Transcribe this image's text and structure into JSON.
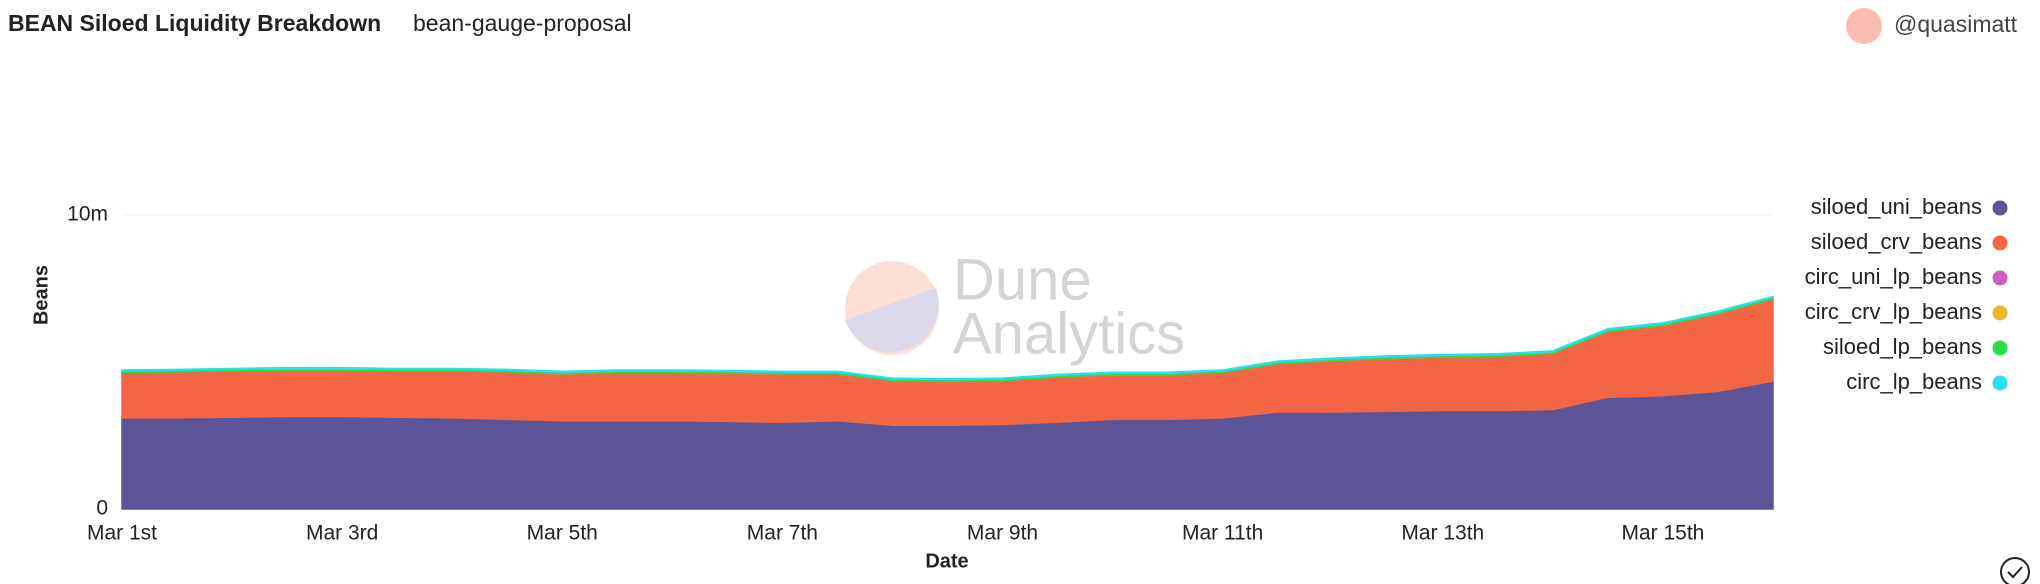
{
  "header": {
    "title": "BEAN Siloed Liquidity Breakdown",
    "subtitle": "bean-gauge-proposal",
    "user": "@quasimatt"
  },
  "chart_data": {
    "type": "area",
    "stacked": true,
    "watermark": [
      "Dune",
      "Analytics"
    ],
    "xlabel": "Date",
    "ylabel": "Beans",
    "x": [
      1,
      1.5,
      2,
      2.5,
      3,
      3.5,
      4,
      4.5,
      5,
      5.5,
      6,
      6.5,
      7,
      7.5,
      8,
      8.5,
      9,
      9.5,
      10,
      10.5,
      11,
      11.5,
      12,
      12.5,
      13,
      13.5,
      14,
      14.5,
      15,
      15.5,
      16
    ],
    "xlim": [
      1,
      16
    ],
    "xticks": [
      {
        "value": 1,
        "label": "Mar 1st"
      },
      {
        "value": 3,
        "label": "Mar 3rd"
      },
      {
        "value": 5,
        "label": "Mar 5th"
      },
      {
        "value": 7,
        "label": "Mar 7th"
      },
      {
        "value": 9,
        "label": "Mar 9th"
      },
      {
        "value": 11,
        "label": "Mar 11th"
      },
      {
        "value": 13,
        "label": "Mar 13th"
      },
      {
        "value": 15,
        "label": "Mar 15th"
      }
    ],
    "ylim": [
      0,
      10000000
    ],
    "yticks": [
      0,
      {
        "value": 10000000,
        "label": "10m"
      }
    ],
    "grid": true,
    "legend": "right",
    "series": [
      {
        "name": "siloed_uni_beans",
        "color": "#5b5598",
        "values": [
          3100000,
          3100000,
          3120000,
          3150000,
          3150000,
          3120000,
          3100000,
          3050000,
          3000000,
          3000000,
          3000000,
          2980000,
          2950000,
          3000000,
          2850000,
          2850000,
          2880000,
          2950000,
          3050000,
          3050000,
          3100000,
          3300000,
          3300000,
          3320000,
          3350000,
          3350000,
          3380000,
          3800000,
          3850000,
          4000000,
          4350000
        ]
      },
      {
        "name": "siloed_crv_beans",
        "color": "#f26644",
        "values": [
          1550000,
          1570000,
          1580000,
          1580000,
          1580000,
          1580000,
          1600000,
          1620000,
          1600000,
          1650000,
          1650000,
          1650000,
          1650000,
          1600000,
          1520000,
          1500000,
          1490000,
          1550000,
          1520000,
          1520000,
          1550000,
          1650000,
          1750000,
          1810000,
          1820000,
          1850000,
          1920000,
          2250000,
          2400000,
          2650000,
          2800000
        ]
      },
      {
        "name": "circ_uni_lp_beans",
        "color": "#cf5fb9",
        "values": [
          0,
          0,
          0,
          0,
          0,
          0,
          0,
          0,
          0,
          0,
          0,
          0,
          0,
          0,
          0,
          0,
          0,
          0,
          0,
          0,
          0,
          0,
          0,
          0,
          0,
          0,
          0,
          0,
          0,
          0,
          0
        ]
      },
      {
        "name": "circ_crv_lp_beans",
        "color": "#eeb72b",
        "values": [
          0,
          0,
          0,
          0,
          0,
          0,
          0,
          0,
          0,
          0,
          0,
          0,
          0,
          0,
          0,
          0,
          0,
          0,
          0,
          0,
          0,
          0,
          0,
          0,
          0,
          0,
          0,
          0,
          0,
          0,
          0
        ]
      },
      {
        "name": "siloed_lp_beans",
        "color": "#2bdc4a",
        "values": [
          50000,
          50000,
          50000,
          50000,
          50000,
          50000,
          50000,
          50000,
          50000,
          50000,
          50000,
          50000,
          50000,
          50000,
          50000,
          50000,
          50000,
          50000,
          50000,
          50000,
          50000,
          50000,
          50000,
          50000,
          50000,
          50000,
          50000,
          50000,
          50000,
          50000,
          50000
        ]
      },
      {
        "name": "circ_lp_beans",
        "color": "#22e1f0",
        "values": [
          30000,
          30000,
          30000,
          30000,
          30000,
          30000,
          30000,
          30000,
          30000,
          30000,
          30000,
          30000,
          30000,
          30000,
          30000,
          30000,
          30000,
          30000,
          30000,
          30000,
          30000,
          30000,
          30000,
          30000,
          30000,
          30000,
          30000,
          30000,
          30000,
          30000,
          30000
        ]
      }
    ]
  }
}
